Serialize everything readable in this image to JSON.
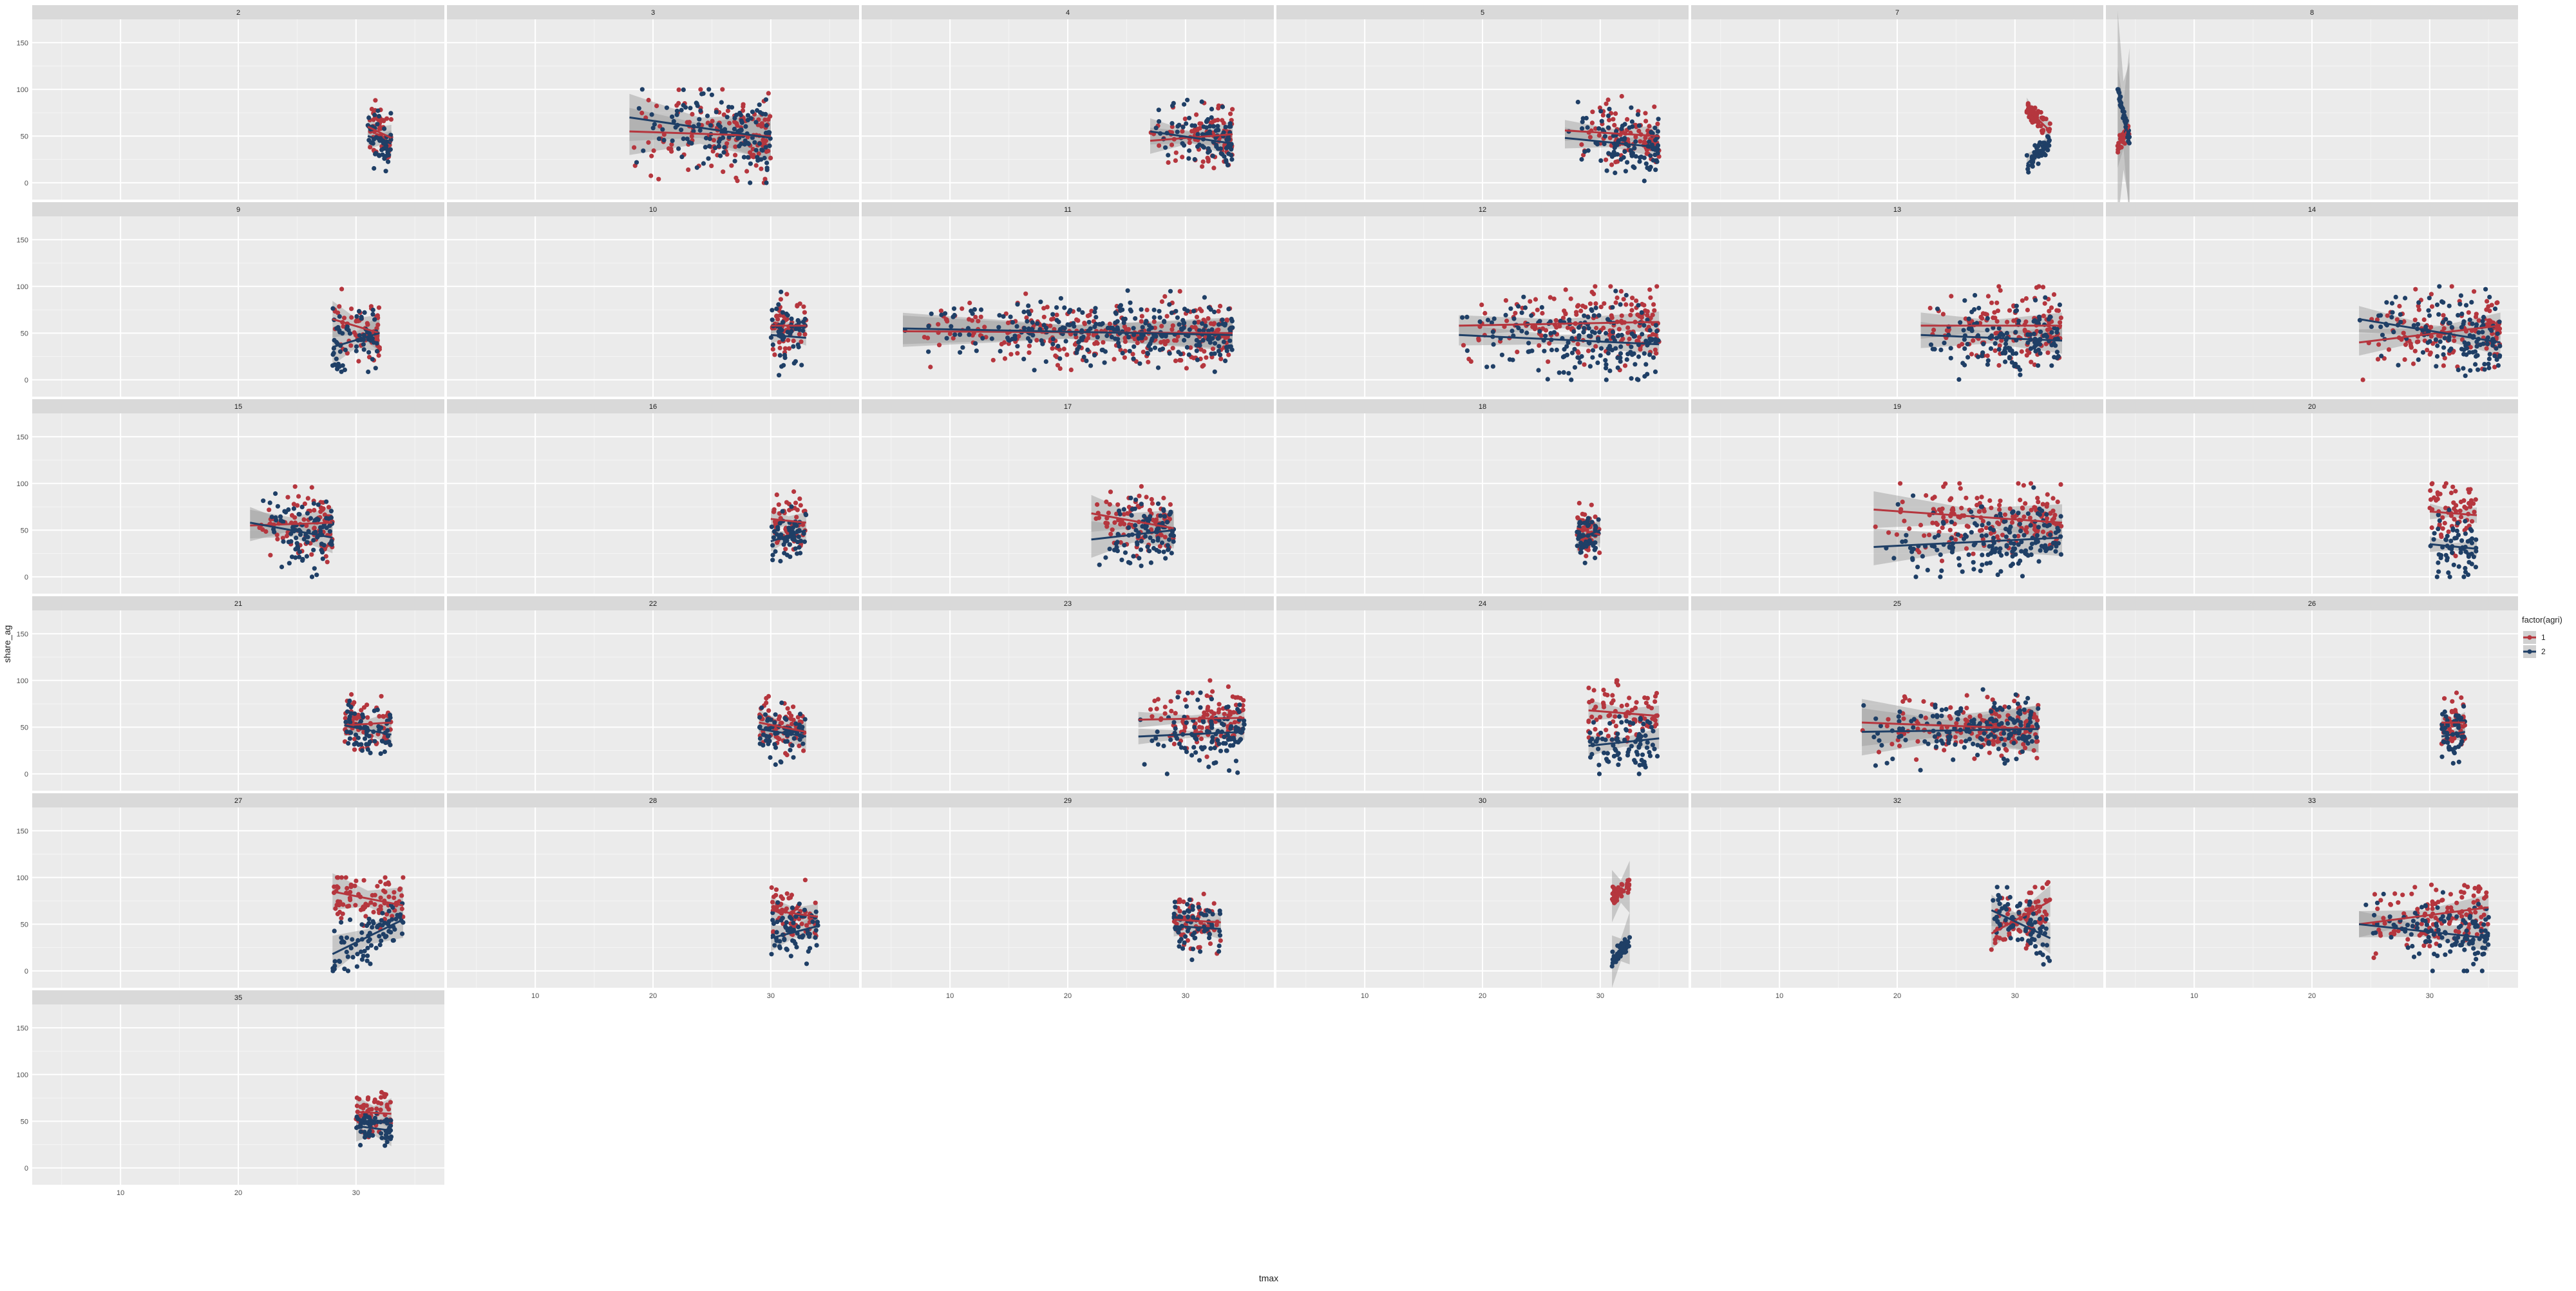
{
  "chart_data": {
    "type": "scatter",
    "facet_var": "",
    "xlabel": "tmax",
    "ylabel": "share_ag",
    "xlim": [
      2.5,
      37.5
    ],
    "ylim": [
      -18,
      175
    ],
    "x_ticks": [
      10,
      20,
      30
    ],
    "y_ticks": [
      0,
      50,
      100,
      150
    ],
    "grid": true,
    "legend": {
      "title": "factor(agri)",
      "position": "right",
      "entries": [
        {
          "label": "1",
          "color": "#b5363e"
        },
        {
          "label": "2",
          "color": "#1f3f66"
        }
      ]
    },
    "smooth": "lm with confidence band",
    "panels": [
      {
        "label": "2",
        "x": [
          31,
          33
        ],
        "fit1": [
          60,
          48
        ],
        "fit2": [
          50,
          42
        ],
        "spread": 14,
        "band": 10
      },
      {
        "label": "3",
        "x": [
          18,
          30
        ],
        "fit1": [
          55,
          50
        ],
        "fit2": [
          70,
          48
        ],
        "spread": 22,
        "band": 18
      },
      {
        "label": "4",
        "x": [
          27,
          34
        ],
        "fit1": [
          45,
          52
        ],
        "fit2": [
          55,
          42
        ],
        "spread": 16,
        "band": 10
      },
      {
        "label": "5",
        "x": [
          27,
          35
        ],
        "fit1": [
          56,
          50
        ],
        "fit2": [
          48,
          38
        ],
        "spread": 16,
        "band": 8
      },
      {
        "label": "7",
        "x": [
          31,
          33
        ],
        "fit1": [
          80,
          55
        ],
        "fit2": [
          20,
          45
        ],
        "spread": 5,
        "band": 8
      },
      {
        "label": "8",
        "x": [
          3.5,
          4.5
        ],
        "fit1": [
          40,
          60
        ],
        "fit2": [
          100,
          45
        ],
        "spread": 5,
        "band": 60
      },
      {
        "label": "9",
        "x": [
          28,
          32
        ],
        "fit1": [
          65,
          50
        ],
        "fit2": [
          35,
          50
        ],
        "spread": 18,
        "band": 14
      },
      {
        "label": "10",
        "x": [
          30,
          33
        ],
        "fit1": [
          58,
          58
        ],
        "fit2": [
          48,
          45
        ],
        "spread": 16,
        "band": 6
      },
      {
        "label": "11",
        "x": [
          6,
          34
        ],
        "fit1": [
          52,
          50
        ],
        "fit2": [
          55,
          48
        ],
        "spread": 16,
        "band": 12
      },
      {
        "label": "12",
        "x": [
          18,
          35
        ],
        "fit1": [
          58,
          62
        ],
        "fit2": [
          48,
          38
        ],
        "spread": 20,
        "band": 8
      },
      {
        "label": "13",
        "x": [
          22,
          34
        ],
        "fit1": [
          58,
          58
        ],
        "fit2": [
          48,
          42
        ],
        "spread": 20,
        "band": 10
      },
      {
        "label": "14",
        "x": [
          24,
          36
        ],
        "fit1": [
          40,
          58
        ],
        "fit2": [
          65,
          40
        ],
        "spread": 20,
        "band": 10
      },
      {
        "label": "15",
        "x": [
          21,
          28
        ],
        "fit1": [
          55,
          58
        ],
        "fit2": [
          58,
          42
        ],
        "spread": 18,
        "band": 12
      },
      {
        "label": "16",
        "x": [
          30,
          33
        ],
        "fit1": [
          62,
          58
        ],
        "fit2": [
          38,
          50
        ],
        "spread": 14,
        "band": 8
      },
      {
        "label": "17",
        "x": [
          22,
          29
        ],
        "fit1": [
          68,
          52
        ],
        "fit2": [
          40,
          50
        ],
        "spread": 16,
        "band": 14
      },
      {
        "label": "18",
        "x": [
          28,
          30
        ],
        "fit1": [
          52,
          45
        ],
        "fit2": [
          40,
          50
        ],
        "spread": 14,
        "band": 10
      },
      {
        "label": "19",
        "x": [
          18,
          34
        ],
        "fit1": [
          72,
          58
        ],
        "fit2": [
          32,
          42
        ],
        "spread": 18,
        "band": 14
      },
      {
        "label": "20",
        "x": [
          30,
          34
        ],
        "fit1": [
          70,
          66
        ],
        "fit2": [
          35,
          30
        ],
        "spread": 18,
        "band": 6
      },
      {
        "label": "21",
        "x": [
          29,
          33
        ],
        "fit1": [
          52,
          55
        ],
        "fit2": [
          52,
          42
        ],
        "spread": 14,
        "band": 8
      },
      {
        "label": "22",
        "x": [
          29,
          33
        ],
        "fit1": [
          55,
          45
        ],
        "fit2": [
          48,
          40
        ],
        "spread": 14,
        "band": 10
      },
      {
        "label": "23",
        "x": [
          26,
          35
        ],
        "fit1": [
          58,
          60
        ],
        "fit2": [
          40,
          45
        ],
        "spread": 18,
        "band": 6
      },
      {
        "label": "24",
        "x": [
          29,
          35
        ],
        "fit1": [
          68,
          62
        ],
        "fit2": [
          30,
          38
        ],
        "spread": 16,
        "band": 8
      },
      {
        "label": "25",
        "x": [
          17,
          32
        ],
        "fit1": [
          55,
          48
        ],
        "fit2": [
          45,
          48
        ],
        "spread": 16,
        "band": 18
      },
      {
        "label": "26",
        "x": [
          31,
          33
        ],
        "fit1": [
          55,
          55
        ],
        "fit2": [
          40,
          45
        ],
        "spread": 14,
        "band": 8
      },
      {
        "label": "27",
        "x": [
          28,
          34
        ],
        "fit1": [
          85,
          70
        ],
        "fit2": [
          18,
          55
        ],
        "spread": 14,
        "band": 14
      },
      {
        "label": "28",
        "x": [
          30,
          34
        ],
        "fit1": [
          65,
          58
        ],
        "fit2": [
          35,
          48
        ],
        "spread": 16,
        "band": 10
      },
      {
        "label": "29",
        "x": [
          29,
          33
        ],
        "fit1": [
          55,
          52
        ],
        "fit2": [
          48,
          45
        ],
        "spread": 14,
        "band": 8
      },
      {
        "label": "30",
        "x": [
          31,
          32.5
        ],
        "fit1": [
          80,
          90
        ],
        "fit2": [
          10,
          35
        ],
        "spread": 5,
        "band": 20
      },
      {
        "label": "32",
        "x": [
          28,
          33
        ],
        "fit1": [
          40,
          75
        ],
        "fit2": [
          65,
          35
        ],
        "spread": 14,
        "band": 12
      },
      {
        "label": "33",
        "x": [
          24,
          35
        ],
        "fit1": [
          50,
          68
        ],
        "fit2": [
          50,
          35
        ],
        "spread": 16,
        "band": 10
      },
      {
        "label": "35",
        "x": [
          30,
          33
        ],
        "fit1": [
          60,
          58
        ],
        "fit2": [
          45,
          40
        ],
        "spread": 12,
        "band": 12
      }
    ]
  }
}
